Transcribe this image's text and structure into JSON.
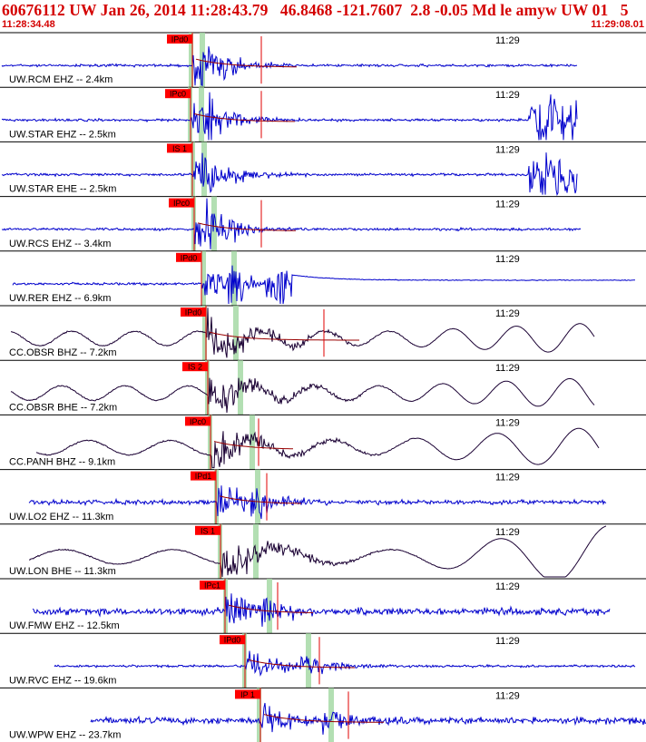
{
  "header": {
    "title": "60676112 UW Jan 26, 2014 11:28:43.79   46.8468 -121.7607  2.8 -0.05 Md le amyw UW 01   5",
    "start_time": "11:28:34.48",
    "end_time": "11:29:08.01"
  },
  "colors": {
    "header_red": "#d40000",
    "pick_box": "#ff0000",
    "ehz_trace": "#0000cc",
    "broadband_trace": "#1a0033",
    "theory_curve": "#990000",
    "phase_window": "#a6d9a6",
    "divider": "#000000"
  },
  "chart_data": {
    "type": "line",
    "title": "60676112 UW Jan 26, 2014 11:28:43.79   46.8468 -121.7607  2.8 -0.05 Md le amyw UW 01   5",
    "x_range": [
      "11:28:34.48",
      "11:29:08.01"
    ],
    "x_tick_label": "11:29",
    "channels": [
      {
        "label": "UW.RCM EHZ -- 2.4km",
        "pick": "IPd0",
        "kind": "short-period",
        "event": "steady"
      },
      {
        "label": "UW.STAR EHZ -- 2.5km",
        "pick": "IPc0",
        "kind": "short-period",
        "event": "burst"
      },
      {
        "label": "UW.STAR EHE -- 2.5km",
        "pick": "IS 1",
        "kind": "short-period",
        "event": "burst"
      },
      {
        "label": "UW.RCS EHZ -- 3.4km",
        "pick": "IPc0",
        "kind": "short-period",
        "event": "steady"
      },
      {
        "label": "UW.RER EHZ -- 6.9km",
        "pick": "IPd0",
        "kind": "short-period",
        "event": "glitch"
      },
      {
        "label": "CC.OBSR BHZ -- 7.2km",
        "pick": "IPd0",
        "kind": "broadband",
        "event": "long-period"
      },
      {
        "label": "CC.OBSR BHE -- 7.2km",
        "pick": "IS 2",
        "kind": "broadband",
        "event": "long-period"
      },
      {
        "label": "CC.PANH BHZ -- 9.1km",
        "pick": "IPc0",
        "kind": "broadband",
        "event": "long-period"
      },
      {
        "label": "UW.LO2 EHZ -- 11.3km",
        "pick": "IPd1",
        "kind": "short-period",
        "event": "steady"
      },
      {
        "label": "UW.LON BHE -- 11.3km",
        "pick": "IS 1",
        "kind": "broadband",
        "event": "long-period"
      },
      {
        "label": "UW.FMW EHZ -- 12.5km",
        "pick": "IPc1",
        "kind": "short-period",
        "event": "steady"
      },
      {
        "label": "UW.RVC EHZ -- 19.6km",
        "pick": "IPd0",
        "kind": "short-period",
        "event": "steady"
      },
      {
        "label": "UW.WPW EHZ -- 23.7km",
        "pick": "IP 1",
        "kind": "short-period",
        "event": "steady"
      }
    ]
  }
}
